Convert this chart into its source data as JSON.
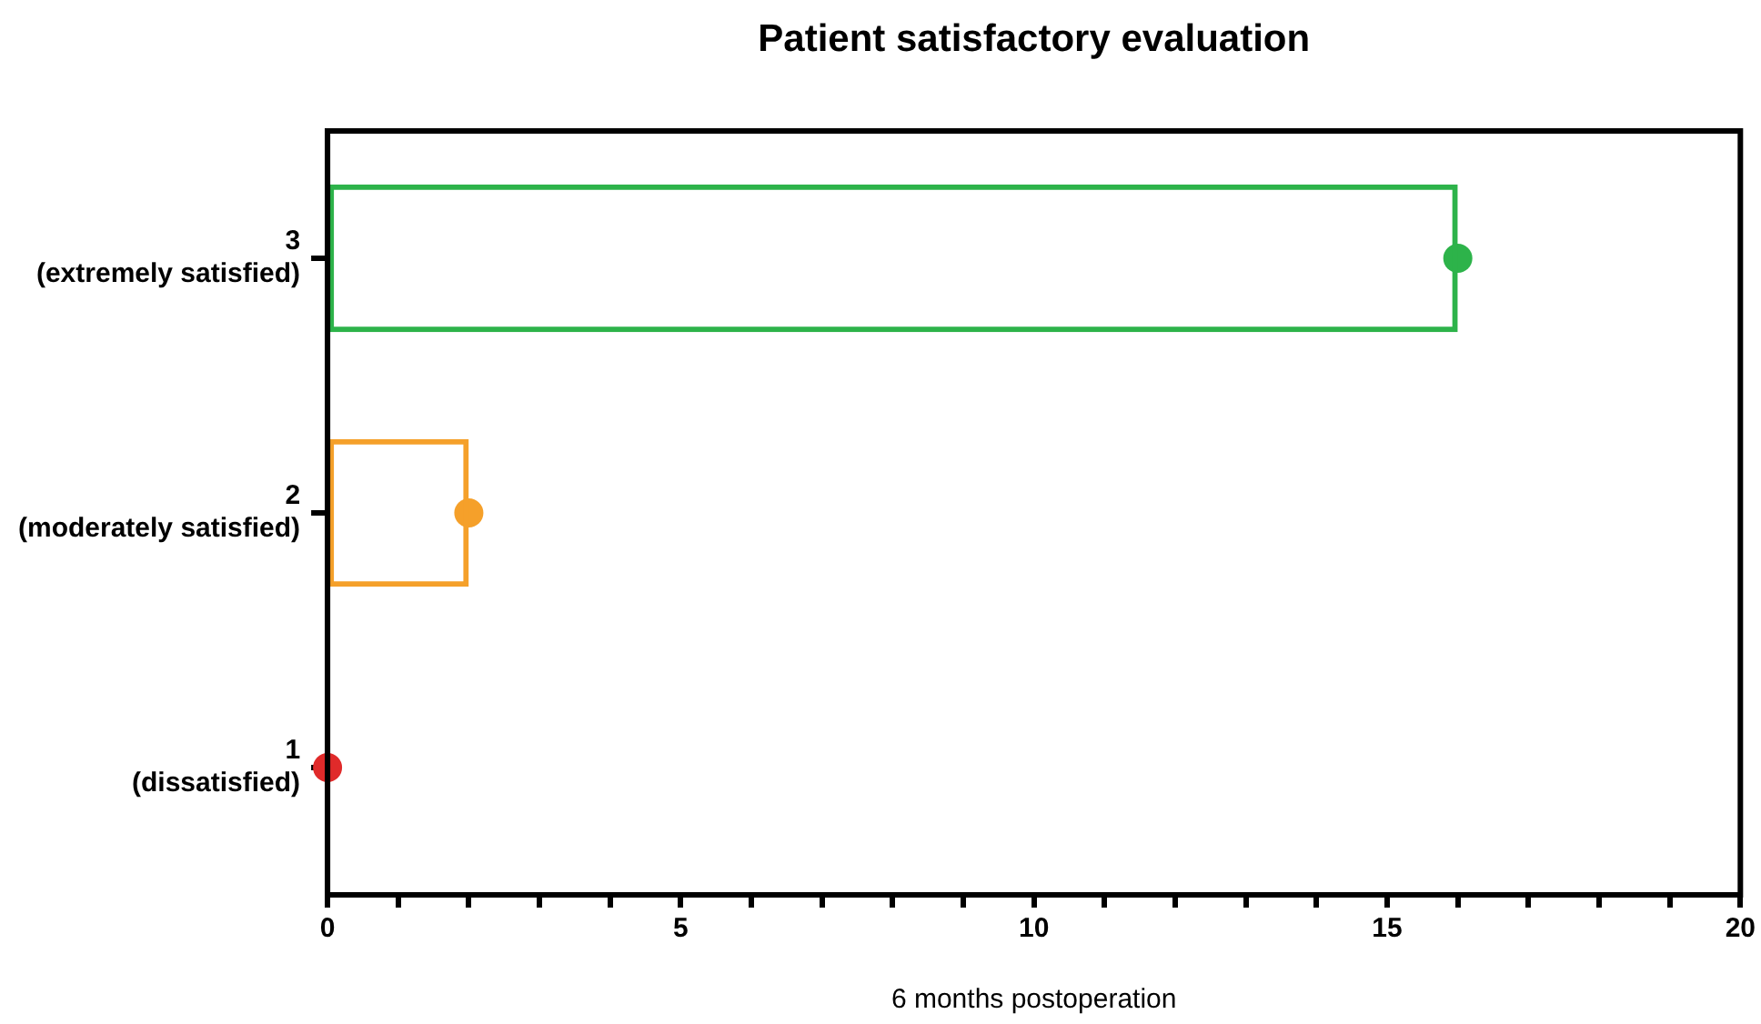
{
  "chart_data": {
    "type": "bar",
    "orientation": "horizontal",
    "title": "Patient satisfactory evaluation",
    "xlabel": "6 months postoperation",
    "categories": [
      "3\n(extremely satisfied)",
      "2\n(moderately satisfied)",
      "1\n(dissatisfied)"
    ],
    "series": [
      {
        "values": [
          16,
          2,
          0
        ],
        "colors": [
          "#2db34a",
          "#f5a02a",
          "#e02a2a"
        ]
      },
      {
        "type": "scatter",
        "values": [
          16,
          2,
          0
        ],
        "colors": [
          "#2db34a",
          "#f5a02a",
          "#e02a2a"
        ]
      }
    ],
    "xlim": [
      0,
      20
    ],
    "xticks": [
      0,
      {
        "value": 1,
        "label": null
      },
      {
        "value": 2,
        "label": null
      },
      {
        "value": 3,
        "label": null
      },
      {
        "value": 4,
        "label": null
      },
      5,
      {
        "value": 6,
        "label": null
      },
      {
        "value": 7,
        "label": null
      },
      {
        "value": 8,
        "label": null
      },
      {
        "value": 9,
        "label": null
      },
      10,
      {
        "value": 11,
        "label": null
      },
      {
        "value": 12,
        "label": null
      },
      {
        "value": 13,
        "label": null
      },
      {
        "value": 14,
        "label": null
      },
      15,
      {
        "value": 16,
        "label": null
      },
      {
        "value": 17,
        "label": null
      },
      {
        "value": 18,
        "label": null
      },
      {
        "value": 19,
        "label": null
      },
      20
    ],
    "grid": false,
    "legend": false,
    "marker": "circle"
  }
}
